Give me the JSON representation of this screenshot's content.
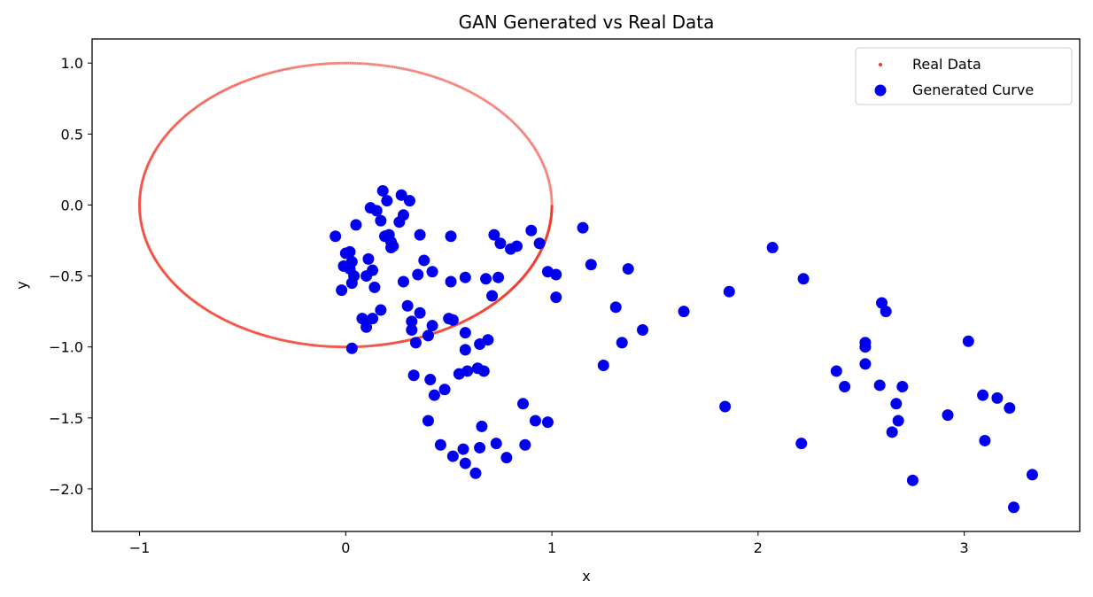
{
  "chart_data": {
    "type": "scatter",
    "title": "GAN Generated vs Real Data",
    "xlabel": "x",
    "ylabel": "y",
    "xlim": [
      -1.23,
      3.56
    ],
    "ylim": [
      -2.3,
      1.17
    ],
    "x_ticks": [
      -1,
      0,
      1,
      2,
      3
    ],
    "y_ticks": [
      1.0,
      0.5,
      0.0,
      -0.5,
      -1.0,
      -1.5,
      -2.0
    ],
    "x_tick_labels": [
      "−1",
      "0",
      "1",
      "2",
      "3"
    ],
    "y_tick_labels": [
      "1.0",
      "0.5",
      "0.0",
      "−0.5",
      "−1.0",
      "−1.5",
      "−2.0"
    ],
    "grid": false,
    "legend_position": "top-right",
    "series": [
      {
        "name": "Real Data",
        "color": "#f03a2a",
        "marker": "small-dot",
        "shape": "circle",
        "description_values": {
          "center": [
            0,
            0
          ],
          "radius": 1,
          "angle_range_deg": [
            0,
            360
          ]
        }
      },
      {
        "name": "Generated Curve",
        "color": "#0000ee",
        "marker": "large-dot",
        "points": [
          [
            -0.05,
            -0.22
          ],
          [
            0.0,
            -0.34
          ],
          [
            0.02,
            -0.33
          ],
          [
            -0.01,
            -0.43
          ],
          [
            0.02,
            -0.45
          ],
          [
            0.03,
            -0.4
          ],
          [
            -0.02,
            -0.6
          ],
          [
            0.03,
            -0.55
          ],
          [
            0.04,
            -0.5
          ],
          [
            0.05,
            -0.14
          ],
          [
            0.08,
            -0.8
          ],
          [
            0.1,
            -0.86
          ],
          [
            0.1,
            -0.5
          ],
          [
            0.11,
            -0.38
          ],
          [
            0.12,
            -0.02
          ],
          [
            0.13,
            -0.8
          ],
          [
            0.13,
            -0.46
          ],
          [
            0.14,
            -0.58
          ],
          [
            0.15,
            -0.04
          ],
          [
            0.17,
            -0.74
          ],
          [
            0.17,
            -0.11
          ],
          [
            0.18,
            0.1
          ],
          [
            0.19,
            -0.22
          ],
          [
            0.2,
            0.03
          ],
          [
            0.21,
            -0.21
          ],
          [
            0.22,
            -0.26
          ],
          [
            0.22,
            -0.3
          ],
          [
            0.23,
            -0.29
          ],
          [
            0.03,
            -1.01
          ],
          [
            0.26,
            -0.12
          ],
          [
            0.27,
            0.07
          ],
          [
            0.28,
            -0.07
          ],
          [
            0.28,
            -0.54
          ],
          [
            0.3,
            -0.71
          ],
          [
            0.31,
            0.03
          ],
          [
            0.32,
            -0.82
          ],
          [
            0.32,
            -0.88
          ],
          [
            0.33,
            -1.2
          ],
          [
            0.34,
            -0.97
          ],
          [
            0.35,
            -0.49
          ],
          [
            0.36,
            -0.21
          ],
          [
            0.36,
            -0.76
          ],
          [
            0.38,
            -0.39
          ],
          [
            0.4,
            -0.92
          ],
          [
            0.4,
            -1.52
          ],
          [
            0.41,
            -1.23
          ],
          [
            0.42,
            -0.47
          ],
          [
            0.42,
            -0.85
          ],
          [
            0.43,
            -1.34
          ],
          [
            0.46,
            -1.69
          ],
          [
            0.48,
            -1.3
          ],
          [
            0.5,
            -0.8
          ],
          [
            0.51,
            -0.54
          ],
          [
            0.51,
            -0.22
          ],
          [
            0.52,
            -0.81
          ],
          [
            0.52,
            -1.77
          ],
          [
            0.55,
            -1.19
          ],
          [
            0.57,
            -1.72
          ],
          [
            0.58,
            -0.51
          ],
          [
            0.58,
            -0.9
          ],
          [
            0.58,
            -1.02
          ],
          [
            0.58,
            -1.82
          ],
          [
            0.59,
            -1.17
          ],
          [
            0.63,
            -1.89
          ],
          [
            0.64,
            -1.15
          ],
          [
            0.65,
            -0.98
          ],
          [
            0.65,
            -1.71
          ],
          [
            0.66,
            -1.56
          ],
          [
            0.67,
            -1.17
          ],
          [
            0.68,
            -0.52
          ],
          [
            0.69,
            -0.95
          ],
          [
            0.71,
            -0.64
          ],
          [
            0.72,
            -0.21
          ],
          [
            0.73,
            -1.68
          ],
          [
            0.74,
            -0.51
          ],
          [
            0.75,
            -0.27
          ],
          [
            0.78,
            -1.78
          ],
          [
            0.8,
            -0.31
          ],
          [
            0.83,
            -0.29
          ],
          [
            0.86,
            -1.4
          ],
          [
            0.87,
            -1.69
          ],
          [
            0.9,
            -0.18
          ],
          [
            0.92,
            -1.52
          ],
          [
            0.94,
            -0.27
          ],
          [
            0.98,
            -0.47
          ],
          [
            0.98,
            -1.53
          ],
          [
            1.02,
            -0.49
          ],
          [
            1.02,
            -0.65
          ],
          [
            1.15,
            -0.16
          ],
          [
            1.19,
            -0.42
          ],
          [
            1.25,
            -1.13
          ],
          [
            1.31,
            -0.72
          ],
          [
            1.34,
            -0.97
          ],
          [
            1.37,
            -0.45
          ],
          [
            1.44,
            -0.88
          ],
          [
            1.64,
            -0.75
          ],
          [
            1.84,
            -1.42
          ],
          [
            1.86,
            -0.61
          ],
          [
            2.07,
            -0.3
          ],
          [
            2.21,
            -1.68
          ],
          [
            2.22,
            -0.52
          ],
          [
            2.38,
            -1.17
          ],
          [
            2.42,
            -1.28
          ],
          [
            2.52,
            -0.97
          ],
          [
            2.52,
            -1.0
          ],
          [
            2.52,
            -1.12
          ],
          [
            2.59,
            -1.27
          ],
          [
            2.6,
            -0.69
          ],
          [
            2.62,
            -0.75
          ],
          [
            2.65,
            -1.6
          ],
          [
            2.67,
            -1.4
          ],
          [
            2.68,
            -1.52
          ],
          [
            2.7,
            -1.28
          ],
          [
            2.75,
            -1.94
          ],
          [
            2.92,
            -1.48
          ],
          [
            3.02,
            -0.96
          ],
          [
            3.09,
            -1.34
          ],
          [
            3.1,
            -1.66
          ],
          [
            3.16,
            -1.36
          ],
          [
            3.22,
            -1.43
          ],
          [
            3.24,
            -2.13
          ],
          [
            3.33,
            -1.9
          ]
        ]
      }
    ]
  }
}
